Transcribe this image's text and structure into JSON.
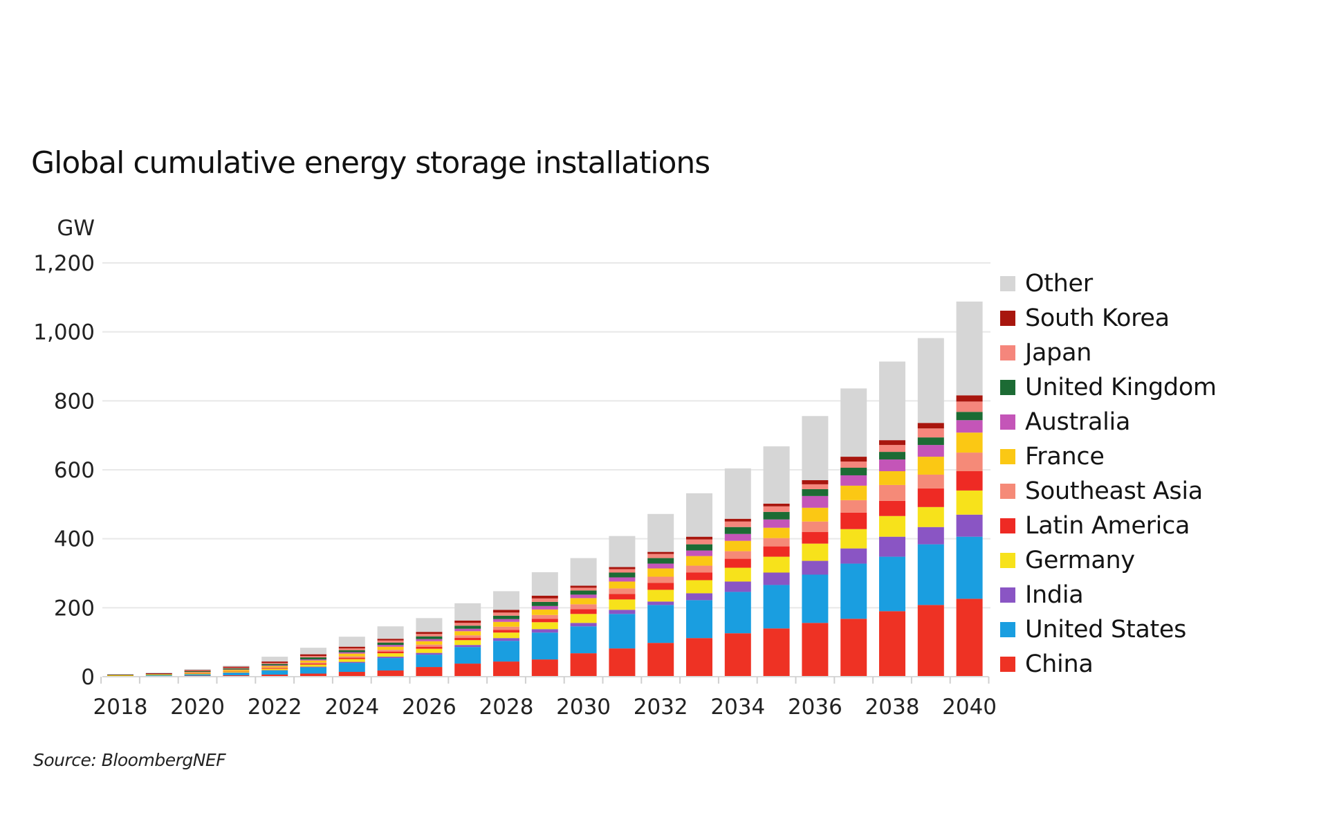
{
  "chart_data": {
    "type": "bar",
    "stacked": true,
    "title": "Global cumulative energy storage installations",
    "ylabel": "GW",
    "xlabel": "",
    "ylim": [
      0,
      1200
    ],
    "yticks": [
      0,
      200,
      400,
      600,
      800,
      1000,
      1200
    ],
    "ytick_labels": [
      "0",
      "200",
      "400",
      "600",
      "800",
      "1,000",
      "1,200"
    ],
    "xtick_labels": [
      "2018",
      "2020",
      "2022",
      "2024",
      "2026",
      "2028",
      "2030",
      "2032",
      "2034",
      "2036",
      "2038",
      "2040"
    ],
    "grid": true,
    "legend_position": "right",
    "source": "Source: BloombergNEF",
    "categories": [
      "2018",
      "2019",
      "2020",
      "2021",
      "2022",
      "2023",
      "2024",
      "2025",
      "2026",
      "2027",
      "2028",
      "2029",
      "2030",
      "2031",
      "2032",
      "2033",
      "2034",
      "2035",
      "2036",
      "2037",
      "2038",
      "2039",
      "2040"
    ],
    "series": [
      {
        "name": "China",
        "color": "#ee3224",
        "values": [
          1,
          2,
          3,
          4,
          6,
          9,
          14,
          18,
          28,
          38,
          44,
          50,
          68,
          82,
          98,
          112,
          126,
          140,
          156,
          168,
          190,
          208,
          226
        ]
      },
      {
        "name": "United States",
        "color": "#1a9ee0",
        "values": [
          1,
          2,
          4,
          7,
          12,
          18,
          26,
          36,
          36,
          48,
          60,
          78,
          78,
          100,
          110,
          110,
          120,
          126,
          140,
          160,
          158,
          176,
          180
        ]
      },
      {
        "name": "India",
        "color": "#8a55c4",
        "values": [
          0,
          0,
          0,
          1,
          1,
          2,
          3,
          4,
          5,
          6,
          8,
          10,
          10,
          12,
          10,
          20,
          30,
          36,
          40,
          44,
          58,
          50,
          64
        ]
      },
      {
        "name": "Germany",
        "color": "#f7e21b",
        "values": [
          1,
          1,
          2,
          3,
          4,
          6,
          8,
          10,
          12,
          14,
          16,
          20,
          26,
          30,
          34,
          38,
          40,
          46,
          50,
          56,
          60,
          58,
          70
        ]
      },
      {
        "name": "Latin America",
        "color": "#ee2a24",
        "values": [
          0,
          0,
          1,
          1,
          2,
          3,
          4,
          5,
          6,
          7,
          8,
          10,
          14,
          16,
          20,
          22,
          26,
          30,
          34,
          48,
          44,
          54,
          56
        ]
      },
      {
        "name": "Southeast Asia",
        "color": "#f58a78",
        "values": [
          0,
          0,
          1,
          1,
          2,
          3,
          4,
          5,
          6,
          7,
          9,
          11,
          14,
          16,
          18,
          20,
          22,
          24,
          30,
          36,
          46,
          40,
          54
        ]
      },
      {
        "name": "France",
        "color": "#fbc814",
        "values": [
          1,
          1,
          2,
          3,
          4,
          6,
          8,
          9,
          10,
          12,
          14,
          16,
          18,
          20,
          24,
          28,
          30,
          30,
          40,
          42,
          40,
          52,
          58
        ]
      },
      {
        "name": "Australia",
        "color": "#c455b8",
        "values": [
          0,
          0,
          1,
          1,
          2,
          3,
          4,
          5,
          6,
          7,
          8,
          10,
          10,
          12,
          14,
          16,
          20,
          24,
          34,
          30,
          34,
          34,
          36
        ]
      },
      {
        "name": "United Kingdom",
        "color": "#1c6b34",
        "values": [
          1,
          1,
          2,
          3,
          4,
          6,
          6,
          7,
          8,
          9,
          10,
          12,
          12,
          14,
          16,
          18,
          20,
          22,
          20,
          22,
          22,
          22,
          24
        ]
      },
      {
        "name": "Japan",
        "color": "#f5867c",
        "values": [
          0,
          1,
          1,
          2,
          3,
          4,
          5,
          6,
          7,
          8,
          9,
          10,
          8,
          10,
          12,
          14,
          16,
          16,
          14,
          18,
          20,
          26,
          30
        ]
      },
      {
        "name": "South Korea",
        "color": "#a8160e",
        "values": [
          1,
          2,
          2,
          3,
          4,
          5,
          5,
          5,
          6,
          7,
          8,
          8,
          6,
          6,
          6,
          8,
          8,
          8,
          12,
          14,
          14,
          16,
          18
        ]
      },
      {
        "name": "Other",
        "color": "#d6d6d6",
        "values": [
          2,
          2,
          3,
          3,
          14,
          19,
          29,
          36,
          40,
          50,
          54,
          68,
          80,
          90,
          110,
          126,
          146,
          166,
          186,
          198,
          228,
          246,
          272
        ]
      }
    ]
  }
}
